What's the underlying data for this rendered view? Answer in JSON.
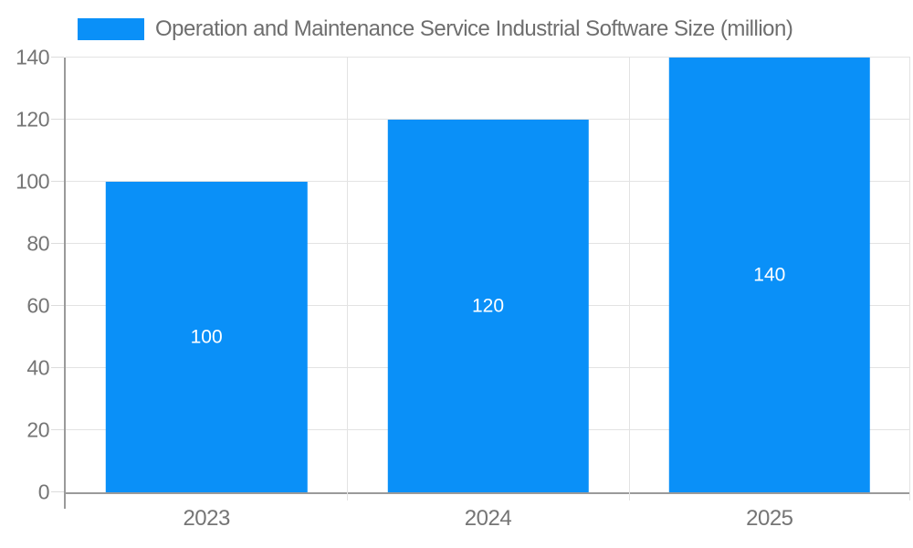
{
  "legend": {
    "label": "Operation and Maintenance Service Industrial Software Size (million)"
  },
  "chart_data": {
    "type": "bar",
    "title": "",
    "categories": [
      "2023",
      "2024",
      "2025"
    ],
    "values": [
      100,
      120,
      140
    ],
    "series_name": "Operation and Maintenance Service Industrial Software Size (million)",
    "data_labels": [
      "100",
      "120",
      "140"
    ],
    "xlabel": "",
    "ylabel": "",
    "ylim": [
      0,
      140
    ],
    "yticks": [
      0,
      20,
      40,
      60,
      80,
      100,
      120,
      140
    ],
    "grid": true,
    "legend_position": "top-left",
    "bar_width_fraction": 0.715
  },
  "colors": {
    "bar": "#0a90f8",
    "gridline": "#e3e3e3",
    "tick_mark": "#dcdcdc",
    "axis_line": "#9a9a9a",
    "tick_label_text": "#757575",
    "legend_text": "#6e6e6e",
    "bar_label_text": "#ffffff",
    "background": "#ffffff"
  }
}
